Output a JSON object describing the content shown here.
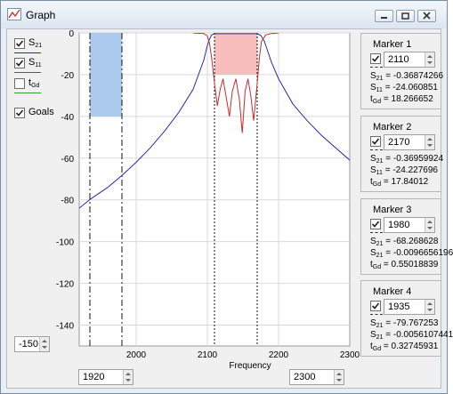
{
  "window": {
    "title": "Graph"
  },
  "legend": [
    {
      "name": "S21",
      "sym": "S",
      "sub": "21",
      "checked": true,
      "color": "#2b2ba6"
    },
    {
      "name": "S11",
      "sym": "S",
      "sub": "11",
      "checked": true,
      "color": "#cc2a2a"
    },
    {
      "name": "tGd",
      "sym": "t",
      "sub": "Gd",
      "checked": false,
      "color": "#3a9a3a"
    },
    {
      "name": "Goals",
      "label": "Goals",
      "checked": true
    }
  ],
  "controls": {
    "ymin": "-150",
    "xmin": "1920",
    "xmax": "2300"
  },
  "chart_data": {
    "type": "line",
    "xlabel": "Frequency",
    "ylabel": "",
    "xlim": [
      1920,
      2300
    ],
    "ylim": [
      -150,
      0
    ],
    "x_ticks": [
      2000,
      2100,
      2200,
      2300
    ],
    "y_ticks": [
      0,
      -20,
      -40,
      -60,
      -80,
      -100,
      -120,
      -140
    ],
    "grid": true,
    "series": [
      {
        "name": "S21",
        "color": "#2b2ba6",
        "x": [
          1920,
          1935,
          1960,
          1980,
          2000,
          2020,
          2040,
          2060,
          2080,
          2095,
          2100,
          2103,
          2106,
          2110,
          2170,
          2175,
          2180,
          2186,
          2190,
          2200,
          2220,
          2240,
          2260,
          2280,
          2300
        ],
        "y": [
          -84,
          -79.8,
          -74,
          -68.3,
          -62,
          -55,
          -47,
          -38,
          -27,
          -13,
          -6,
          -3,
          -1,
          -0.37,
          -0.37,
          -1.2,
          -4,
          -10,
          -14,
          -22,
          -34,
          -42,
          -49,
          -55,
          -61
        ]
      },
      {
        "name": "S11",
        "color": "#cc2a2a",
        "x": [
          2080,
          2095,
          2100,
          2103,
          2106,
          2110,
          2114,
          2118,
          2122,
          2127,
          2131,
          2135,
          2140,
          2145,
          2149,
          2153,
          2157,
          2161,
          2165,
          2170,
          2173,
          2176,
          2182,
          2190,
          2200
        ],
        "y": [
          -0.05,
          -0.3,
          -1.5,
          -5,
          -12,
          -24.1,
          -35,
          -27,
          -22,
          -32,
          -40,
          -28,
          -22,
          -32,
          -48,
          -28,
          -22,
          -30,
          -42,
          -24.2,
          -12,
          -4,
          -1,
          -0.3,
          -0.05
        ]
      }
    ],
    "goals": [
      {
        "type": "S21 rejection",
        "x": [
          1935,
          1980
        ],
        "y_max": -40
      },
      {
        "type": "S11 return loss",
        "x": [
          2110,
          2170
        ],
        "y_max": -20
      }
    ],
    "marker_lines": [
      1935,
      1980,
      2110,
      2170
    ]
  },
  "markers": [
    {
      "title": "Marker 1",
      "value": "2110",
      "checked": true,
      "lines": [
        [
          "S",
          "21",
          "= -0.36874266"
        ],
        [
          "S",
          "11",
          "= -24.060851"
        ],
        [
          "t",
          "Gd",
          "= 18.266652"
        ]
      ]
    },
    {
      "title": "Marker 2",
      "value": "2170",
      "checked": true,
      "lines": [
        [
          "S",
          "21",
          "= -0.36959924"
        ],
        [
          "S",
          "11",
          "= -24.227696"
        ],
        [
          "t",
          "Gd",
          "= 17.84012"
        ]
      ]
    },
    {
      "title": "Marker 3",
      "value": "1980",
      "checked": true,
      "lines": [
        [
          "S",
          "21",
          "= -68.268628"
        ],
        [
          "S",
          "21",
          "= -0.0096656196"
        ],
        [
          "t",
          "Gd",
          "= 0.55018839"
        ]
      ]
    },
    {
      "title": "Marker 4",
      "value": "1935",
      "checked": true,
      "lines": [
        [
          "S",
          "21",
          "= -79.767253"
        ],
        [
          "S",
          "21",
          "= -0.0056107441"
        ],
        [
          "t",
          "Gd",
          "= 0.32745931"
        ]
      ]
    }
  ]
}
